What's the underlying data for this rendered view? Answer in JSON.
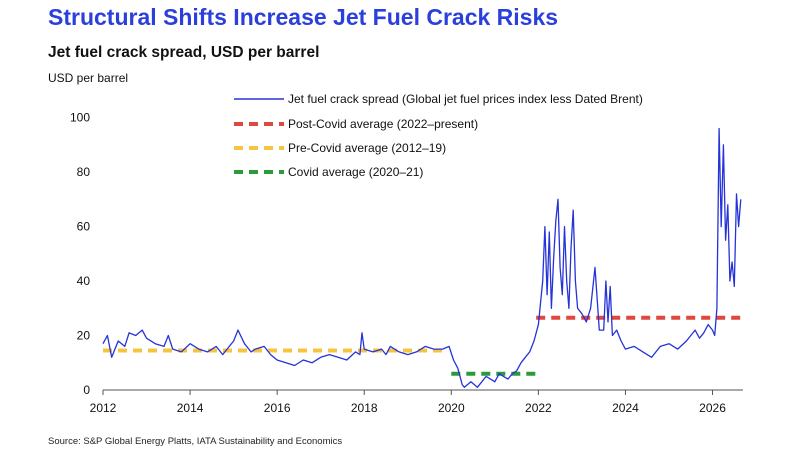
{
  "title": "Structural Shifts Increase Jet Fuel Crack Risks",
  "subtitle": "Jet fuel crack spread, USD per barrel",
  "source": "Source: S&P Global Energy Platts, IATA Sustainability and Economics",
  "colors": {
    "title": "#2a3fdc",
    "series": "#2633d8",
    "post_covid": "#e0473f",
    "pre_covid": "#f5c542",
    "covid": "#2b9a3a"
  },
  "chart_data": {
    "type": "line",
    "ylabel": "USD per barrel",
    "xlim": [
      2012,
      2026.7
    ],
    "ylim": [
      0,
      105
    ],
    "x_ticks": [
      "2012",
      "2014",
      "2016",
      "2018",
      "2020",
      "2022",
      "2024",
      "2026"
    ],
    "y_ticks": [
      "0",
      "20",
      "40",
      "60",
      "80",
      "100"
    ],
    "grid": false,
    "legend_position": "top-center",
    "series": [
      {
        "name": "Jet fuel crack spread (Global jet fuel prices index less Dated Brent)",
        "style": "line",
        "x": [
          2012.0,
          2012.1,
          2012.2,
          2012.35,
          2012.5,
          2012.6,
          2012.75,
          2012.9,
          2013.0,
          2013.2,
          2013.4,
          2013.5,
          2013.6,
          2013.8,
          2014.0,
          2014.2,
          2014.4,
          2014.6,
          2014.75,
          2014.9,
          2015.0,
          2015.1,
          2015.25,
          2015.4,
          2015.5,
          2015.7,
          2015.85,
          2016.0,
          2016.2,
          2016.4,
          2016.6,
          2016.8,
          2017.0,
          2017.2,
          2017.4,
          2017.6,
          2017.8,
          2017.9,
          2017.95,
          2018.0,
          2018.2,
          2018.4,
          2018.5,
          2018.6,
          2018.8,
          2019.0,
          2019.2,
          2019.4,
          2019.6,
          2019.8,
          2019.95,
          2020.05,
          2020.15,
          2020.25,
          2020.3,
          2020.45,
          2020.6,
          2020.7,
          2020.8,
          2020.9,
          2021.0,
          2021.1,
          2021.2,
          2021.3,
          2021.4,
          2021.5,
          2021.6,
          2021.7,
          2021.8,
          2021.9,
          2022.0,
          2022.1,
          2022.15,
          2022.2,
          2022.25,
          2022.3,
          2022.35,
          2022.4,
          2022.45,
          2022.5,
          2022.55,
          2022.6,
          2022.65,
          2022.7,
          2022.75,
          2022.8,
          2022.85,
          2022.9,
          2023.0,
          2023.1,
          2023.2,
          2023.3,
          2023.4,
          2023.5,
          2023.55,
          2023.6,
          2023.65,
          2023.7,
          2023.8,
          2023.9,
          2024.0,
          2024.2,
          2024.4,
          2024.6,
          2024.8,
          2025.0,
          2025.2,
          2025.4,
          2025.5,
          2025.6,
          2025.7,
          2025.8,
          2025.9,
          2026.0,
          2026.05,
          2026.1,
          2026.15,
          2026.2,
          2026.25,
          2026.3,
          2026.35,
          2026.4,
          2026.45,
          2026.5,
          2026.55,
          2026.6,
          2026.65
        ],
        "y": [
          17,
          20,
          12,
          18,
          16,
          21,
          20,
          22,
          19,
          17,
          16,
          20,
          15,
          14,
          17,
          15,
          14,
          16,
          13,
          16,
          18,
          22,
          17,
          14,
          15,
          16,
          13,
          11,
          10,
          9,
          11,
          10,
          12,
          13,
          12,
          11,
          14,
          13,
          21,
          15,
          14,
          15,
          13,
          16,
          14,
          13,
          14,
          16,
          15,
          15,
          16,
          11,
          8,
          2,
          1,
          3,
          1,
          3,
          5,
          4,
          3,
          6,
          5,
          4,
          6,
          7,
          10,
          12,
          14,
          18,
          24,
          40,
          60,
          35,
          58,
          30,
          48,
          62,
          70,
          45,
          35,
          60,
          40,
          30,
          52,
          66,
          40,
          30,
          28,
          25,
          30,
          45,
          22,
          22,
          40,
          25,
          38,
          20,
          22,
          18,
          15,
          16,
          14,
          12,
          16,
          17,
          15,
          18,
          20,
          22,
          19,
          21,
          24,
          22,
          20,
          30,
          96,
          60,
          90,
          55,
          68,
          40,
          47,
          38,
          72,
          60,
          70
        ]
      },
      {
        "name": "Post-Covid average (2022–present)",
        "style": "dashed",
        "x": [
          2021.95,
          2026.7
        ],
        "y": [
          26.5,
          26.5
        ]
      },
      {
        "name": "Pre-Covid average (2012–19)",
        "style": "dashed",
        "x": [
          2012.0,
          2019.9
        ],
        "y": [
          14.5,
          14.5
        ]
      },
      {
        "name": "Covid average (2020–21)",
        "style": "dashed",
        "x": [
          2020.0,
          2021.95
        ],
        "y": [
          6,
          6
        ]
      }
    ]
  }
}
